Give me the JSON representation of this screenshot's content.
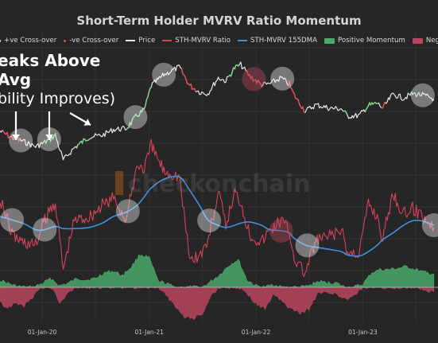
{
  "title": "Short-Term Holder MVRV Ratio Momentum",
  "legend": [
    {
      "label": "+ve Cross-over",
      "color": "#ffffff",
      "kind": "dot",
      "icon": "dot-icon"
    },
    {
      "label": "-ve Cross-over",
      "color": "#e44a5a",
      "kind": "dot",
      "icon": "dot-icon"
    },
    {
      "label": "Price",
      "color": "#e6e6e6",
      "kind": "line",
      "icon": "line-icon"
    },
    {
      "label": "STH-MVRV Ratio",
      "color": "#d6425a",
      "kind": "line",
      "icon": "line-icon"
    },
    {
      "label": "STH-MVRV 155DMA",
      "color": "#3f8fe0",
      "kind": "line",
      "icon": "line-icon"
    },
    {
      "label": "Positive Momentum",
      "color": "#4aa86a",
      "kind": "box",
      "icon": "box-icon"
    },
    {
      "label": "Negative Momentum",
      "color": "#b8455e",
      "kind": "box",
      "icon": "box-icon"
    }
  ],
  "annotation": {
    "line1": "eaks Above",
    "line2": "Avg",
    "line3": "bility Improves)"
  },
  "watermark": "checkonchain",
  "colors": {
    "background": "#262626",
    "price": "#e6e6e6",
    "price_positive": "#7fd48a",
    "price_negative": "#e44a5a",
    "ratio": "#d6425a",
    "dma": "#3f8fe0",
    "positive_momentum": "#4aa86a",
    "negative_momentum": "#b8455e",
    "highlight_white": "#ffffff",
    "highlight_red": "#c84a5e"
  },
  "chart_data": {
    "type": "line",
    "title": "Short-Term Holder MVRV Ratio Momentum",
    "x_ticks": [
      "01-Jan-20",
      "01-Jan-21",
      "01-Jan-22",
      "01-Jan-23"
    ],
    "x_range": [
      "2019-08-10",
      "2023-09-15"
    ],
    "grid": true,
    "legend_position": "top",
    "series": [
      {
        "name": "Price",
        "x": [
          "2019-08-10",
          "2019-09-20",
          "2019-10-25",
          "2019-12-10",
          "2020-01-10",
          "2020-02-15",
          "2020-03-13",
          "2020-04-20",
          "2020-06-10",
          "2020-07-25",
          "2020-09-01",
          "2020-10-15",
          "2020-11-20",
          "2020-12-15",
          "2021-01-08",
          "2021-02-20",
          "2021-04-14",
          "2021-05-19",
          "2021-06-22",
          "2021-07-20",
          "2021-08-25",
          "2021-09-20",
          "2021-10-20",
          "2021-11-10",
          "2021-12-10",
          "2022-01-20",
          "2022-02-15",
          "2022-03-28",
          "2022-04-25",
          "2022-05-12",
          "2022-06-18",
          "2022-07-25",
          "2022-09-10",
          "2022-10-20",
          "2022-11-10",
          "2022-12-20",
          "2023-01-20",
          "2023-02-20",
          "2023-03-10",
          "2023-04-14",
          "2023-05-20",
          "2023-06-20",
          "2023-07-20",
          "2023-09-01"
        ],
        "values": [
          11000,
          9200,
          8400,
          7200,
          8100,
          9800,
          5000,
          7000,
          9400,
          9800,
          11500,
          11800,
          16800,
          19500,
          38000,
          51000,
          63000,
          38000,
          32000,
          30500,
          47000,
          43000,
          61500,
          67000,
          49000,
          39000,
          39500,
          47000,
          39000,
          29000,
          19000,
          22500,
          20500,
          20200,
          16500,
          16800,
          22000,
          23500,
          20500,
          30000,
          27000,
          30500,
          29500,
          26500
        ],
        "color": "#e6e6e6"
      },
      {
        "name": "STH-MVRV Ratio",
        "x": [
          "2019-08-10",
          "2019-09-20",
          "2019-10-25",
          "2019-12-10",
          "2020-01-10",
          "2020-02-15",
          "2020-03-13",
          "2020-04-20",
          "2020-06-10",
          "2020-07-25",
          "2020-09-01",
          "2020-10-15",
          "2020-11-20",
          "2020-12-15",
          "2021-01-08",
          "2021-02-20",
          "2021-04-14",
          "2021-05-19",
          "2021-06-22",
          "2021-07-20",
          "2021-08-25",
          "2021-09-20",
          "2021-10-20",
          "2021-11-10",
          "2021-12-10",
          "2022-01-20",
          "2022-02-15",
          "2022-03-28",
          "2022-04-25",
          "2022-05-12",
          "2022-06-18",
          "2022-07-25",
          "2022-09-10",
          "2022-10-20",
          "2022-11-10",
          "2022-12-20",
          "2023-01-20",
          "2023-02-20",
          "2023-03-10",
          "2023-04-14",
          "2023-05-20",
          "2023-06-20",
          "2023-07-20",
          "2023-09-01"
        ],
        "values": [
          1.25,
          0.92,
          0.85,
          0.82,
          1.05,
          1.22,
          0.6,
          1.05,
          1.08,
          1.18,
          1.25,
          1.05,
          1.55,
          1.52,
          1.72,
          1.5,
          1.45,
          0.7,
          0.72,
          0.85,
          1.3,
          1.0,
          1.3,
          1.22,
          0.92,
          0.85,
          0.95,
          1.05,
          0.95,
          0.7,
          0.56,
          0.86,
          0.9,
          0.95,
          0.74,
          0.76,
          1.2,
          1.08,
          0.88,
          1.3,
          1.1,
          1.15,
          1.1,
          0.98
        ],
        "color": "#d6425a"
      },
      {
        "name": "STH-MVRV 155DMA",
        "x": [
          "2019-08-10",
          "2019-10-25",
          "2019-12-10",
          "2020-01-10",
          "2020-02-15",
          "2020-03-13",
          "2020-04-20",
          "2020-06-10",
          "2020-07-25",
          "2020-09-01",
          "2020-10-15",
          "2020-11-20",
          "2020-12-15",
          "2021-01-08",
          "2021-02-20",
          "2021-04-14",
          "2021-05-19",
          "2021-06-22",
          "2021-07-20",
          "2021-08-25",
          "2021-09-20",
          "2021-10-20",
          "2021-11-10",
          "2021-12-10",
          "2022-01-20",
          "2022-02-15",
          "2022-03-28",
          "2022-04-25",
          "2022-05-12",
          "2022-06-18",
          "2022-07-25",
          "2022-09-10",
          "2022-10-20",
          "2022-11-10",
          "2022-12-20",
          "2023-01-20",
          "2023-02-20",
          "2023-03-10",
          "2023-04-14",
          "2023-05-20",
          "2023-06-20",
          "2023-07-20",
          "2023-09-01"
        ],
        "values": [
          1.08,
          1.02,
          0.96,
          0.96,
          0.99,
          0.97,
          0.97,
          0.98,
          1.02,
          1.08,
          1.12,
          1.18,
          1.26,
          1.34,
          1.42,
          1.44,
          1.32,
          1.18,
          1.05,
          1.0,
          0.98,
          1.0,
          1.02,
          1.03,
          1.0,
          0.96,
          0.95,
          0.93,
          0.88,
          0.82,
          0.8,
          0.78,
          0.76,
          0.73,
          0.72,
          0.76,
          0.82,
          0.87,
          0.93,
          1.0,
          1.04,
          1.04,
          1.0
        ],
        "color": "#3f8fe0"
      },
      {
        "name": "Positive Momentum",
        "type": "area",
        "x": [
          "2019-08-10",
          "2019-09-01",
          "2019-10-01",
          "2019-11-01",
          "2019-12-01",
          "2020-01-01",
          "2020-02-01",
          "2020-03-01",
          "2020-04-01",
          "2020-05-01",
          "2020-06-01",
          "2020-07-01",
          "2020-08-01",
          "2020-09-01",
          "2020-10-01",
          "2020-11-01",
          "2020-12-01",
          "2021-01-01",
          "2021-02-01",
          "2021-03-01",
          "2021-04-01",
          "2021-05-01",
          "2021-06-01",
          "2021-07-01",
          "2021-08-01",
          "2021-09-01",
          "2021-10-01",
          "2021-11-01",
          "2021-12-01",
          "2022-01-01",
          "2022-02-01",
          "2022-03-01",
          "2022-04-01",
          "2022-05-01",
          "2022-06-01",
          "2022-07-01",
          "2022-08-01",
          "2022-09-01",
          "2022-10-01",
          "2022-11-01",
          "2022-12-01",
          "2023-01-01",
          "2023-02-01",
          "2023-03-01",
          "2023-04-01",
          "2023-05-01",
          "2023-06-01",
          "2023-07-01",
          "2023-08-01",
          "2023-09-01"
        ],
        "values": [
          0.1,
          0.06,
          0.02,
          0,
          0,
          0.05,
          0.12,
          0.02,
          0.06,
          0.12,
          0.1,
          0.12,
          0.2,
          0.22,
          0.16,
          0.28,
          0.45,
          0.4,
          0.08,
          0.05,
          0,
          0,
          0,
          0,
          0.08,
          0.18,
          0.3,
          0.38,
          0.1,
          0.02,
          0,
          0.04,
          0,
          0,
          0,
          0.02,
          0.08,
          0.06,
          0.06,
          0,
          0,
          0.04,
          0.2,
          0.24,
          0.24,
          0.26,
          0.28,
          0.24,
          0.2,
          0.18
        ],
        "color": "#4aa86a"
      },
      {
        "name": "Negative Momentum",
        "type": "area",
        "x": [
          "2019-08-10",
          "2019-09-01",
          "2019-10-01",
          "2019-11-01",
          "2019-12-01",
          "2020-01-01",
          "2020-02-01",
          "2020-03-01",
          "2020-04-01",
          "2020-05-01",
          "2020-06-01",
          "2020-07-01",
          "2020-08-01",
          "2020-09-01",
          "2020-10-01",
          "2020-11-01",
          "2020-12-01",
          "2021-01-01",
          "2021-02-01",
          "2021-03-01",
          "2021-04-01",
          "2021-05-01",
          "2021-06-01",
          "2021-07-01",
          "2021-08-01",
          "2021-09-01",
          "2021-10-01",
          "2021-11-01",
          "2021-12-01",
          "2022-01-01",
          "2022-02-01",
          "2022-03-01",
          "2022-04-01",
          "2022-05-01",
          "2022-06-01",
          "2022-07-01",
          "2022-08-01",
          "2022-09-01",
          "2022-10-01",
          "2022-11-01",
          "2022-12-01",
          "2023-01-01",
          "2023-02-01",
          "2023-03-01",
          "2023-04-01",
          "2023-05-01",
          "2023-06-01",
          "2023-07-01",
          "2023-08-01",
          "2023-09-01"
        ],
        "values": [
          -0.2,
          -0.28,
          -0.22,
          -0.25,
          -0.12,
          0,
          0,
          -0.2,
          -0.08,
          0,
          0,
          0,
          0,
          0,
          0,
          0,
          0,
          0,
          0,
          -0.1,
          -0.28,
          -0.4,
          -0.42,
          -0.36,
          -0.1,
          0,
          0,
          0,
          -0.08,
          -0.22,
          -0.3,
          -0.1,
          -0.2,
          -0.3,
          -0.35,
          -0.3,
          -0.08,
          -0.06,
          -0.1,
          -0.16,
          -0.12,
          0,
          0,
          0,
          0,
          0,
          0,
          0,
          -0.04,
          -0.06
        ],
        "color": "#b8455e"
      }
    ]
  }
}
